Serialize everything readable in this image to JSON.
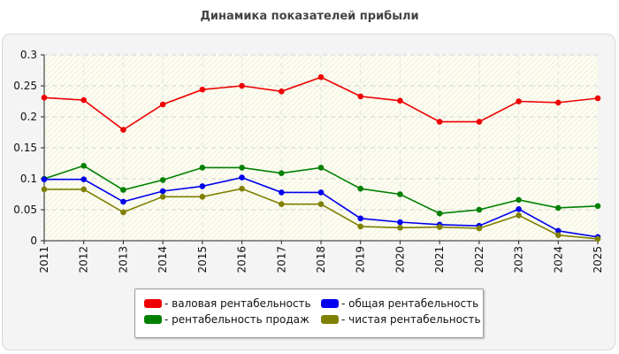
{
  "title": "Динамика показателей прибыли",
  "chart_data": {
    "type": "line",
    "title": "Динамика показателей прибыли",
    "xlabel": "",
    "ylabel": "",
    "categories": [
      "2011",
      "2012",
      "2013",
      "2014",
      "2015",
      "2016",
      "2017",
      "2018",
      "2019",
      "2020",
      "2021",
      "2022",
      "2023",
      "2024",
      "2025"
    ],
    "ylim": [
      0,
      0.3
    ],
    "yticks": [
      0,
      0.05,
      0.1,
      0.15,
      0.2,
      0.25,
      0.3
    ],
    "ytick_labels": [
      "0",
      "0.05",
      "0.1",
      "0.15",
      "0.2",
      "0.25",
      "0.3"
    ],
    "grid": true,
    "legend_position": "bottom",
    "series": [
      {
        "name": "- валовая рентабельность",
        "color": "#ee0000",
        "values": [
          0.231,
          0.227,
          0.179,
          0.22,
          0.244,
          0.25,
          0.241,
          0.264,
          0.233,
          0.226,
          0.192,
          0.192,
          0.225,
          0.223,
          0.23
        ]
      },
      {
        "name": "- рентабельность продаж",
        "color": "#008000",
        "values": [
          0.1,
          0.121,
          0.082,
          0.098,
          0.118,
          0.118,
          0.109,
          0.118,
          0.084,
          0.075,
          0.044,
          0.05,
          0.066,
          0.053,
          0.056
        ]
      },
      {
        "name": "- общая рентабельность",
        "color": "#0000ee",
        "values": [
          0.099,
          0.099,
          0.063,
          0.08,
          0.088,
          0.102,
          0.078,
          0.078,
          0.036,
          0.03,
          0.026,
          0.024,
          0.051,
          0.016,
          0.006
        ]
      },
      {
        "name": "- чистая рентабельность",
        "color": "#808000",
        "values": [
          0.083,
          0.083,
          0.046,
          0.071,
          0.071,
          0.084,
          0.059,
          0.059,
          0.023,
          0.021,
          0.022,
          0.02,
          0.041,
          0.009,
          0.003
        ]
      }
    ]
  },
  "legend": {
    "items": [
      {
        "label": "- валовая рентабельность",
        "color": "#ee0000"
      },
      {
        "label": "- общая рентабельность",
        "color": "#0000ee"
      },
      {
        "label": "- рентабельность продаж",
        "color": "#008000"
      },
      {
        "label": "- чистая рентабельность",
        "color": "#808000"
      }
    ]
  }
}
